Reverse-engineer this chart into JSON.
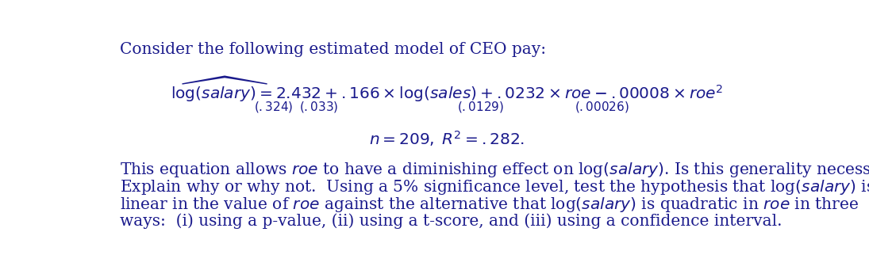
{
  "bg_color": "#ffffff",
  "text_color": "#1a1a8c",
  "title_line": "Consider the following estimated model of CEO pay:",
  "para_line1": "This equation allows $\\mathit{roe}$ to have a diminishing effect on log$(\\mathit{salary})$. Is this generality necessary?",
  "para_line2": "Explain why or why not.  Using a 5% significance level, test the hypothesis that log$(\\mathit{salary})$ is",
  "para_line3": "linear in the value of $\\mathit{roe}$ against the alternative that log$(\\mathit{salary})$ is quadratic in $\\mathit{roe}$ in three",
  "para_line4": "ways:  (i) using a p-value, (ii) using a t-score, and (iii) using a confidence interval.",
  "fs_title": 14.5,
  "fs_eq": 14.5,
  "fs_se": 11.0,
  "fs_stats": 14.5,
  "fs_para": 14.5
}
